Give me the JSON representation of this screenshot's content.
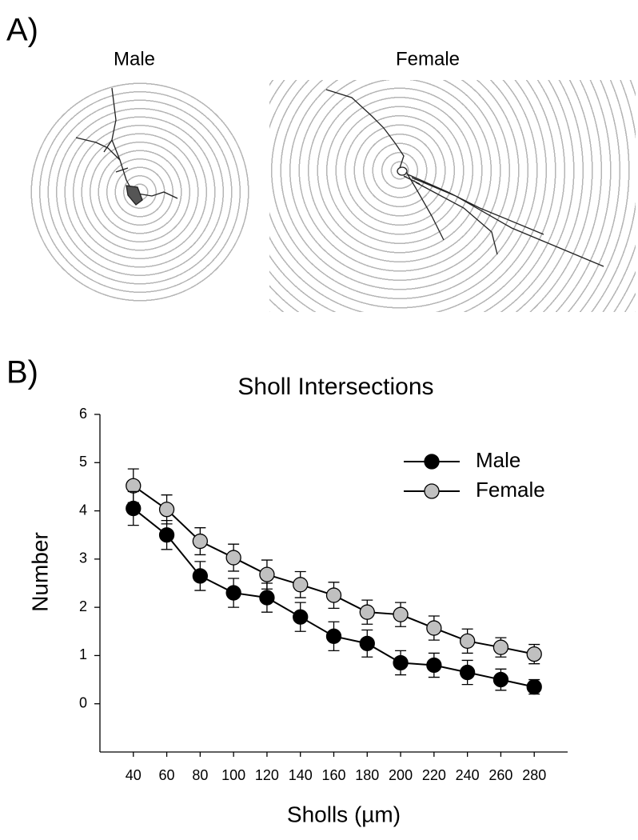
{
  "panel_a": {
    "label": "A)",
    "titles": [
      "Male",
      "Female"
    ]
  },
  "panel_b": {
    "label": "B)"
  },
  "chart_data": {
    "type": "line",
    "title": "Sholl Intersections",
    "x_label": "Sholls (µm)",
    "y_label": "Number",
    "x": [
      40,
      60,
      80,
      100,
      120,
      140,
      160,
      180,
      200,
      220,
      240,
      260,
      280
    ],
    "series": [
      {
        "name": "Male",
        "color": "#000000",
        "values": [
          4.05,
          3.5,
          2.65,
          2.3,
          2.2,
          1.8,
          1.4,
          1.25,
          0.85,
          0.8,
          0.65,
          0.5,
          0.35
        ],
        "errors": [
          0.35,
          0.3,
          0.3,
          0.3,
          0.3,
          0.3,
          0.3,
          0.28,
          0.25,
          0.25,
          0.25,
          0.22,
          0.15
        ]
      },
      {
        "name": "Female",
        "color": "#c0c0c0",
        "values": [
          4.52,
          4.03,
          3.37,
          3.03,
          2.68,
          2.47,
          2.25,
          1.9,
          1.85,
          1.57,
          1.3,
          1.17,
          1.03
        ],
        "errors": [
          0.35,
          0.3,
          0.28,
          0.28,
          0.3,
          0.27,
          0.27,
          0.25,
          0.25,
          0.25,
          0.25,
          0.2,
          0.2
        ]
      }
    ],
    "xlim": [
      20,
      300
    ],
    "xticks": [
      40,
      60,
      80,
      100,
      120,
      140,
      160,
      180,
      200,
      220,
      240,
      260,
      280
    ],
    "ylim": [
      -1,
      6
    ],
    "yticks": [
      0,
      1,
      2,
      3,
      4,
      5,
      6
    ],
    "grid": false,
    "legend": "upper right"
  }
}
